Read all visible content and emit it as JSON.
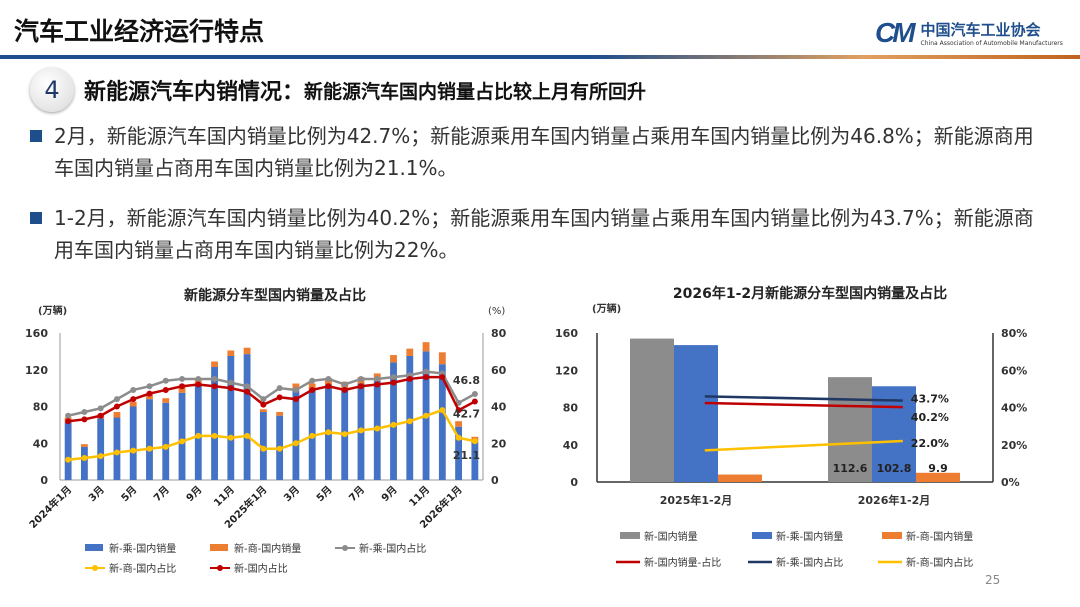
{
  "header": {
    "title": "汽车工业经济运行特点"
  },
  "logo": {
    "mark": "CM",
    "name_cn": "中国汽车工业协会",
    "name_en": "China Association of Automobile Manufacturers"
  },
  "section": {
    "number": "4",
    "heading": "新能源汽车内销情况：",
    "subheading": "新能源汽车国内销量占比较上月有所回升"
  },
  "bullets": [
    "2月，新能源汽车国内销量比例为42.7%；新能源乘用车国内销量占乘用车国内销量比例为46.8%；新能源商用车国内销量占商用车国内销量比例为21.1%。",
    "1-2月，新能源汽车国内销量比例为40.2%；新能源乘用车国内销量占乘用车国内销量比例为43.7%；新能源商用车国内销量占商用车国内销量比例为22%。"
  ],
  "page_number": "25",
  "colors": {
    "passenger": "#4472C4",
    "commercial": "#ED7D31",
    "total": "#8C8C8C",
    "passenger_share": "#8C8C8C",
    "total_share": "#C00000",
    "commercial_share": "#FFC000",
    "passenger_share_right": "#1F3864",
    "brand": "#1F4E8C"
  },
  "chart_data": [
    {
      "type": "bar+line",
      "title": "新能源分车型国内销量及占比",
      "ylabel": "(万辆)",
      "y2label": "(%)",
      "ylim": [
        0,
        160
      ],
      "y2lim": [
        0,
        80
      ],
      "yticks": [
        "0",
        "40",
        "80",
        "120",
        "160"
      ],
      "y2ticks": [
        "0",
        "20",
        "40",
        "60",
        "80"
      ],
      "x_tick_labels": [
        "2024年1月",
        "3月",
        "5月",
        "7月",
        "9月",
        "11月",
        "2025年1月",
        "3月",
        "5月",
        "7月",
        "9月",
        "11月",
        "2026年1月"
      ],
      "x": [
        "2024-01",
        "2024-02",
        "2024-03",
        "2024-04",
        "2024-05",
        "2024-06",
        "2024-07",
        "2024-08",
        "2024-09",
        "2024-10",
        "2024-11",
        "2024-12",
        "2025-01",
        "2025-02",
        "2025-03",
        "2025-04",
        "2025-05",
        "2025-06",
        "2025-07",
        "2025-08",
        "2025-09",
        "2025-10",
        "2025-11",
        "2025-12",
        "2026-01",
        "2026-02"
      ],
      "stacked_bars": [
        {
          "name": "新-乘-国内销量",
          "axis": "left",
          "values": [
            63,
            36,
            67,
            68,
            80,
            88,
            84,
            95,
            103,
            123,
            135,
            137,
            74,
            70,
            97,
            98,
            104,
            100,
            105,
            108,
            128,
            135,
            140,
            126,
            58,
            42
          ]
        },
        {
          "name": "新-商-国内销量",
          "axis": "left",
          "values": [
            5,
            3,
            5,
            6,
            5,
            5,
            5,
            6,
            7,
            6,
            6,
            7,
            3,
            4,
            8,
            7,
            7,
            7,
            7,
            8,
            8,
            8,
            10,
            13,
            6,
            5
          ]
        }
      ],
      "lines": [
        {
          "name": "新-乘-国内占比",
          "axis": "right",
          "values": [
            35,
            37,
            39,
            44,
            49,
            51,
            54,
            55,
            55,
            55,
            53,
            51,
            44,
            50,
            49,
            54,
            55,
            52,
            55,
            55,
            56,
            57,
            59,
            58,
            42,
            46.8
          ]
        },
        {
          "name": "新-商-国内占比",
          "axis": "right",
          "values": [
            11,
            12,
            13,
            15,
            16,
            17,
            18,
            21,
            24,
            24,
            23,
            24,
            17,
            17,
            20,
            24,
            26,
            25,
            27,
            28,
            30,
            32,
            35,
            38,
            23,
            21.1
          ]
        },
        {
          "name": "新-国内占比",
          "axis": "right",
          "values": [
            32,
            33,
            35,
            40,
            44,
            47,
            49,
            51,
            52,
            51,
            50,
            48,
            41,
            45,
            44,
            49,
            51,
            49,
            51,
            52,
            53,
            55,
            56,
            56,
            38,
            42.7
          ]
        }
      ],
      "data_labels": [
        "46.8",
        "42.7",
        "21.1"
      ],
      "legend": [
        "新-乘-国内销量",
        "新-商-国内销量",
        "新-乘-国内占比",
        "新-商-国内占比",
        "新-国内占比"
      ],
      "legend_position": "bottom"
    },
    {
      "type": "bar+line",
      "title": "2026年1-2月新能源分车型国内销量及占比",
      "ylabel": "(万辆)",
      "ylim": [
        0,
        160
      ],
      "y2lim": [
        0,
        80
      ],
      "yticks": [
        "0",
        "40",
        "80",
        "120",
        "160"
      ],
      "y2ticks": [
        "0%",
        "20%",
        "40%",
        "60%",
        "80%"
      ],
      "categories": [
        "2025年1-2月",
        "2026年1-2月"
      ],
      "bars": [
        {
          "name": "新-国内销量",
          "values": [
            154,
            112.6
          ]
        },
        {
          "name": "新-乘-国内销量",
          "values": [
            147,
            102.8
          ]
        },
        {
          "name": "新-商-国内销量",
          "values": [
            8,
            9.9
          ]
        }
      ],
      "bar_labels": [
        "112.6",
        "102.8",
        "9.9"
      ],
      "lines": [
        {
          "name": "新-国内销量-占比",
          "values": [
            42.4,
            40.2
          ]
        },
        {
          "name": "新-乘-国内占比",
          "values": [
            46,
            43.7
          ]
        },
        {
          "name": "新-商-国内占比",
          "values": [
            17,
            22.0
          ]
        }
      ],
      "line_labels": [
        "43.7%",
        "40.2%",
        "22.0%"
      ],
      "legend": [
        "新-国内销量",
        "新-乘-国内销量",
        "新-商-国内销量",
        "新-国内销量-占比",
        "新-乘-国内占比",
        "新-商-国内占比"
      ],
      "legend_position": "bottom"
    }
  ]
}
